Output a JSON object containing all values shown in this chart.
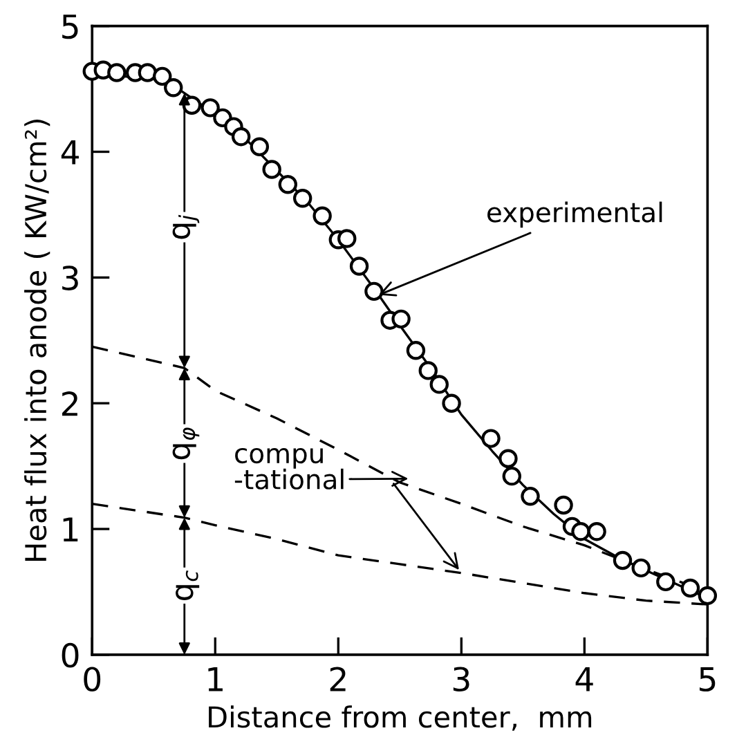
{
  "chart_data": {
    "type": "scatter",
    "xlabel": "Distance from center,  mm",
    "ylabel": "Heat flux into anode ( KW/cm²)",
    "xlim": [
      0,
      5
    ],
    "ylim": [
      0,
      5
    ],
    "xticks": [
      0,
      1,
      2,
      3,
      4,
      5
    ],
    "yticks": [
      0,
      1,
      2,
      3,
      4,
      5
    ],
    "grid": false,
    "legend": false,
    "series": [
      {
        "marker": "circle",
        "color": "#000000",
        "x": [
          0.0,
          0.09,
          0.2,
          0.35,
          0.45,
          0.57,
          0.66,
          0.81,
          0.96,
          1.06,
          1.15,
          1.21,
          1.36,
          1.46,
          1.59,
          1.71,
          1.87,
          2.0,
          2.07,
          2.17,
          2.29,
          2.42,
          2.51,
          2.63,
          2.73,
          2.82,
          2.92,
          3.24,
          3.38,
          3.41,
          3.56,
          3.83,
          3.9,
          3.97,
          4.1,
          4.31,
          4.46,
          4.66,
          4.86,
          5.0
        ],
        "values": [
          4.64,
          4.65,
          4.63,
          4.63,
          4.63,
          4.6,
          4.51,
          4.37,
          4.35,
          4.27,
          4.2,
          4.12,
          4.04,
          3.86,
          3.74,
          3.63,
          3.49,
          3.3,
          3.31,
          3.09,
          2.89,
          2.66,
          2.67,
          2.42,
          2.26,
          2.15,
          2.0,
          1.72,
          1.56,
          1.42,
          1.26,
          1.19,
          1.02,
          0.98,
          0.98,
          0.75,
          0.69,
          0.58,
          0.53,
          0.47
        ]
      },
      {
        "type": "line",
        "marker": "none",
        "line_style": "solid",
        "color": "#000000",
        "x": [
          0,
          0.25,
          0.5,
          0.7,
          1.0,
          1.25,
          1.5,
          1.75,
          2.0,
          2.3,
          2.5,
          2.75,
          3.0,
          3.25,
          3.5,
          3.75,
          4.0,
          4.3,
          4.5,
          4.75,
          5.0
        ],
        "values": [
          4.6,
          4.6,
          4.58,
          4.5,
          4.3,
          4.1,
          3.85,
          3.6,
          3.3,
          2.9,
          2.62,
          2.28,
          1.91,
          1.62,
          1.35,
          1.12,
          0.92,
          0.76,
          0.67,
          0.56,
          0.45
        ]
      },
      {
        "type": "line",
        "marker": "none",
        "line_style": "dashed",
        "color": "#000000",
        "x": [
          0,
          0.75,
          1.0,
          1.5,
          2.0,
          2.5,
          3.0,
          3.5,
          4.0,
          4.5,
          5.0
        ],
        "values": [
          2.45,
          2.28,
          2.1,
          1.88,
          1.63,
          1.37,
          1.2,
          1.02,
          0.87,
          0.68,
          0.5
        ]
      },
      {
        "type": "line",
        "marker": "none",
        "line_style": "dashed",
        "color": "#000000",
        "x": [
          0,
          0.75,
          1.0,
          1.5,
          2.0,
          2.5,
          3.0,
          3.5,
          4.0,
          4.5,
          5.0
        ],
        "values": [
          1.2,
          1.09,
          1.03,
          0.92,
          0.79,
          0.72,
          0.65,
          0.57,
          0.49,
          0.43,
          0.4
        ]
      }
    ],
    "annotations": [
      {
        "text": "experimental",
        "x": 2.3,
        "y": 2.85
      },
      {
        "text": "compu\n-tational",
        "x": 2.6,
        "y": 1.4
      },
      {
        "text": "q$_{j}$",
        "x": 0.75,
        "y": 3.4
      },
      {
        "text": "q$_{φ}$",
        "x": 0.75,
        "y": 1.68
      },
      {
        "text": "q$_{c}$",
        "x": 0.75,
        "y": 0.55
      }
    ]
  }
}
